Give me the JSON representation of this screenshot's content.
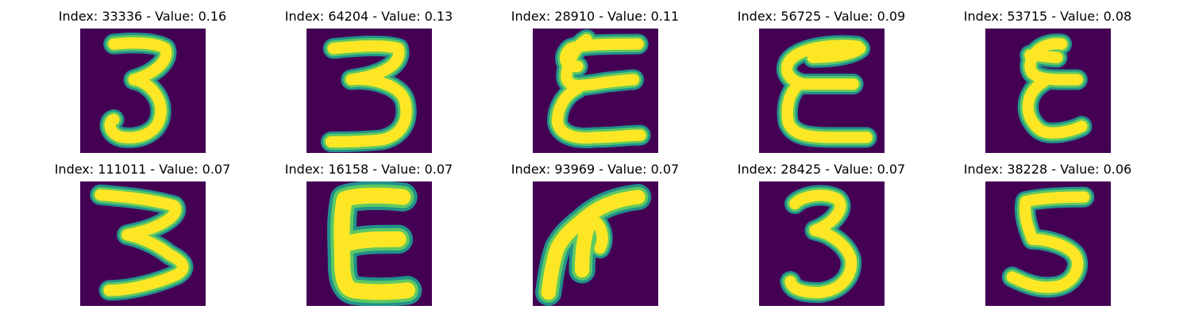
{
  "colors": {
    "background": "#440154",
    "stroke_edge": "#21918c",
    "stroke_mid": "#5ec962",
    "stroke_core": "#fde725"
  },
  "panels": [
    {
      "index": "33336",
      "value": "0.16",
      "title": "Index: 33336 - Value: 0.16",
      "glyph": "3"
    },
    {
      "index": "64204",
      "value": "0.13",
      "title": "Index: 64204 - Value: 0.13",
      "glyph": "3"
    },
    {
      "index": "28910",
      "value": "0.11",
      "title": "Index: 28910 - Value: 0.11",
      "glyph": "E-cursive"
    },
    {
      "index": "56725",
      "value": "0.09",
      "title": "Index: 56725 - Value: 0.09",
      "glyph": "E-cursive"
    },
    {
      "index": "53715",
      "value": "0.08",
      "title": "Index: 53715 - Value: 0.08",
      "glyph": "E-cursive"
    },
    {
      "index": "111011",
      "value": "0.07",
      "title": "Index: 111011 - Value: 0.07",
      "glyph": "3"
    },
    {
      "index": "16158",
      "value": "0.07",
      "title": "Index: 16158 - Value: 0.07",
      "glyph": "E"
    },
    {
      "index": "93969",
      "value": "0.07",
      "title": "Index: 93969 - Value: 0.07",
      "glyph": "scribble"
    },
    {
      "index": "28425",
      "value": "0.07",
      "title": "Index: 28425 - Value: 0.07",
      "glyph": "3"
    },
    {
      "index": "38228",
      "value": "0.06",
      "title": "Index: 38228 - Value: 0.06",
      "glyph": "5"
    }
  ]
}
